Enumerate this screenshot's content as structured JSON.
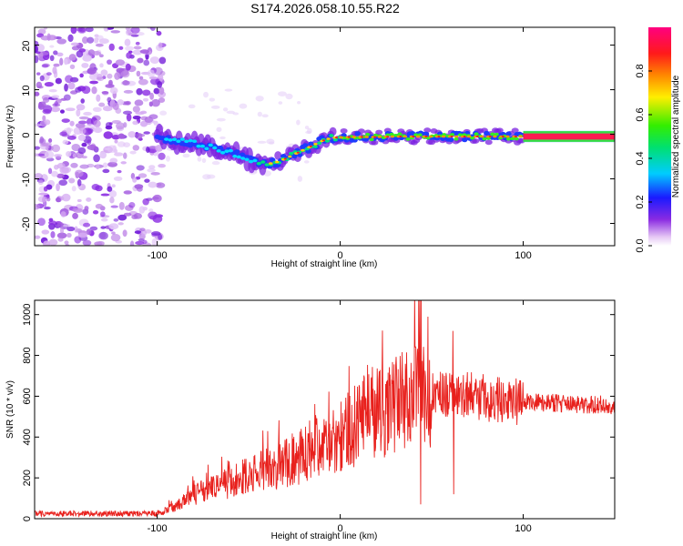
{
  "title": "S174.2026.058.10.55.R22",
  "colors": {
    "snr_line": "#e8201c",
    "frame": "#000000",
    "scatter": "#8a2be2"
  },
  "chart_data": [
    {
      "type": "heatmap",
      "name": "spectrogram",
      "xlabel": "Height of straight line (km)",
      "ylabel": "Frequency (Hz)",
      "xlim": [
        -167,
        150
      ],
      "ylim": [
        -25,
        24
      ],
      "xticks": [
        -100,
        0,
        100
      ],
      "xtick_labels": [
        "-100",
        "0",
        "100"
      ],
      "yticks": [
        20,
        10,
        0,
        -10,
        -20
      ],
      "ytick_labels": [
        "20",
        "10",
        "0",
        "-10",
        "-20"
      ],
      "noise_region_x": [
        -167,
        -100
      ],
      "trace": {
        "x": [
          -100,
          -90,
          -80,
          -70,
          -60,
          -50,
          -45,
          -40,
          -35,
          -30,
          -25,
          -20,
          -15,
          -10,
          -5,
          0,
          10,
          20,
          30,
          40,
          50,
          60,
          70,
          80,
          90,
          100,
          150
        ],
        "y": [
          -0.5,
          -1.5,
          -2.0,
          -3.0,
          -4.0,
          -5.5,
          -6.0,
          -6.7,
          -6.3,
          -5.5,
          -4.5,
          -3.5,
          -2.5,
          -1.5,
          -0.8,
          -0.7,
          -0.6,
          -0.6,
          -0.5,
          -0.5,
          -0.5,
          -0.5,
          -0.5,
          -0.5,
          -0.5,
          -0.5,
          -0.5
        ]
      },
      "colorbar": {
        "label": "Normalized spectral amplitude",
        "ticks": [
          0.0,
          0.2,
          0.4,
          0.6,
          0.8
        ],
        "tick_labels": [
          "0.0",
          "0.2",
          "0.4",
          "0.6",
          "0.8"
        ]
      }
    },
    {
      "type": "line",
      "name": "snr",
      "xlabel": "Height of straight line (km)",
      "ylabel": "SNR (10 * v/v)",
      "xlim": [
        -167,
        150
      ],
      "ylim": [
        0,
        1070
      ],
      "xticks": [
        -100,
        0,
        100
      ],
      "xtick_labels": [
        "-100",
        "0",
        "100"
      ],
      "yticks": [
        0,
        200,
        400,
        600,
        800,
        1000
      ],
      "ytick_labels": [
        "0",
        "200",
        "400",
        "600",
        "800",
        "1000"
      ],
      "envelope": {
        "x": [
          -167,
          -100,
          -90,
          -80,
          -70,
          -60,
          -50,
          -40,
          -30,
          -20,
          -10,
          0,
          10,
          20,
          30,
          40,
          45,
          50,
          60,
          70,
          80,
          90,
          100,
          110,
          120,
          130,
          140,
          150
        ],
        "y": [
          25,
          25,
          60,
          120,
          150,
          180,
          210,
          240,
          275,
          310,
          350,
          400,
          470,
          530,
          560,
          580,
          590,
          600,
          600,
          600,
          590,
          580,
          570,
          570,
          565,
          560,
          560,
          555
        ]
      },
      "spikes": [
        {
          "x": 43.5,
          "y": 1070
        },
        {
          "x": 44.0,
          "y": 70
        },
        {
          "x": 61.5,
          "y": 920
        },
        {
          "x": 62.0,
          "y": 120
        }
      ]
    }
  ]
}
